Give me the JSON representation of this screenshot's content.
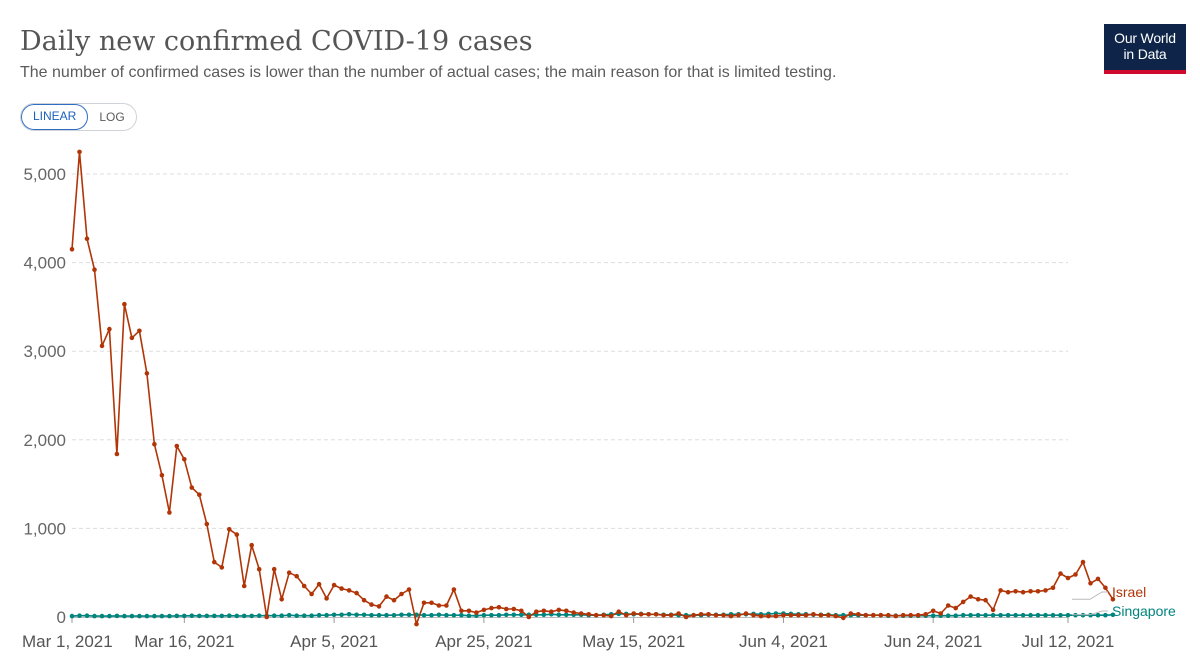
{
  "header": {
    "title": "Daily new confirmed COVID-19 cases",
    "subtitle": "The number of confirmed cases is lower than the number of actual cases; the main reason for that is limited testing.",
    "logo_line1": "Our World",
    "logo_line2": "in Data"
  },
  "controls": {
    "linear_label": "LINEAR",
    "log_label": "LOG",
    "selected": "LINEAR"
  },
  "colors": {
    "israel": "#b13507",
    "singapore": "#00847e",
    "grid": "#dddddd"
  },
  "chart_data": {
    "type": "line",
    "title": "Daily new confirmed COVID-19 cases",
    "xlabel": "",
    "ylabel": "",
    "ylim": [
      0,
      5300
    ],
    "y_ticks": [
      0,
      1000,
      2000,
      3000,
      4000,
      5000
    ],
    "y_tick_labels": [
      "0",
      "1,000",
      "2,000",
      "3,000",
      "4,000",
      "5,000"
    ],
    "x_tick_labels": [
      "Mar 1, 2021",
      "Mar 16, 2021",
      "Apr 5, 2021",
      "Apr 25, 2021",
      "May 15, 2021",
      "Jun 4, 2021",
      "Jun 24, 2021",
      "Jul 12, 2021"
    ],
    "x_tick_days": [
      0,
      15,
      35,
      55,
      75,
      95,
      115,
      133
    ],
    "x_range_days": [
      0,
      133
    ],
    "grid": true,
    "legend_placement": "right",
    "series": [
      {
        "name": "Israel",
        "color": "#b13507",
        "values": [
          4150,
          5250,
          4270,
          3920,
          3060,
          3250,
          1840,
          3530,
          3150,
          3230,
          2750,
          1950,
          1600,
          1180,
          1930,
          1780,
          1460,
          1380,
          1050,
          620,
          560,
          990,
          930,
          350,
          810,
          540,
          0,
          540,
          200,
          500,
          460,
          350,
          260,
          370,
          210,
          360,
          320,
          300,
          270,
          190,
          140,
          120,
          230,
          190,
          260,
          310,
          -80,
          160,
          160,
          130,
          130,
          310,
          70,
          70,
          50,
          80,
          100,
          110,
          90,
          90,
          70,
          0,
          60,
          70,
          60,
          80,
          70,
          50,
          40,
          30,
          20,
          20,
          10,
          60,
          20,
          40,
          30,
          30,
          30,
          20,
          20,
          40,
          0,
          20,
          30,
          30,
          20,
          20,
          10,
          20,
          40,
          20,
          10,
          10,
          10,
          20,
          20,
          20,
          20,
          30,
          20,
          20,
          10,
          -10,
          40,
          30,
          20,
          20,
          20,
          20,
          10,
          20,
          20,
          20,
          30,
          70,
          40,
          130,
          100,
          170,
          230,
          200,
          190,
          80,
          300,
          280,
          290,
          280,
          290,
          290,
          300,
          330,
          490,
          440,
          480,
          620,
          380,
          430,
          330,
          200
        ]
      },
      {
        "name": "Singapore",
        "color": "#00847e",
        "values": [
          10,
          15,
          15,
          10,
          10,
          10,
          12,
          10,
          10,
          10,
          10,
          10,
          10,
          10,
          12,
          12,
          15,
          12,
          12,
          12,
          12,
          15,
          12,
          12,
          12,
          15,
          15,
          15,
          15,
          20,
          15,
          15,
          15,
          20,
          20,
          25,
          25,
          30,
          25,
          25,
          20,
          20,
          20,
          20,
          25,
          25,
          25,
          20,
          20,
          25,
          20,
          20,
          20,
          15,
          15,
          20,
          20,
          20,
          25,
          25,
          25,
          25,
          25,
          25,
          30,
          25,
          25,
          25,
          25,
          20,
          20,
          25,
          30,
          35,
          35,
          30,
          35,
          30,
          30,
          25,
          25,
          20,
          20,
          20,
          20,
          25,
          25,
          25,
          30,
          30,
          30,
          35,
          30,
          35,
          40,
          40,
          35,
          30,
          30,
          25,
          25,
          25,
          20,
          20,
          20,
          20,
          20,
          20,
          20,
          15,
          15,
          15,
          15,
          15,
          15,
          15,
          15,
          15,
          15,
          20,
          20,
          20,
          20,
          20,
          20,
          20,
          20,
          20,
          20,
          20,
          20,
          20,
          20,
          20,
          20,
          20,
          20,
          20,
          20,
          25
        ]
      }
    ]
  }
}
